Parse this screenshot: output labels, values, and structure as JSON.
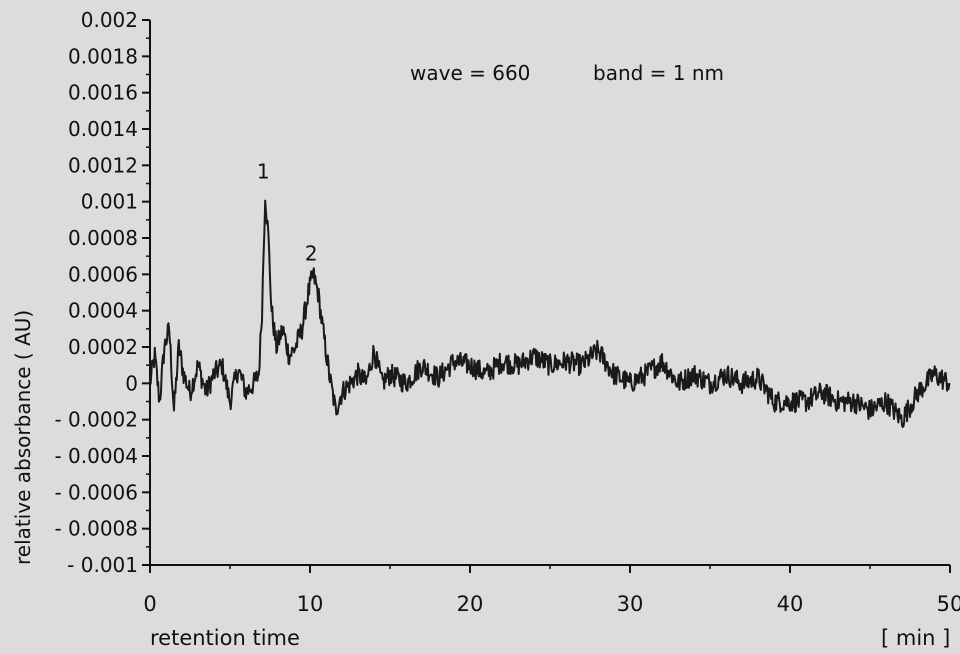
{
  "chart_data": {
    "type": "line",
    "xlabel": "retention time",
    "xunit": "[ min ]",
    "ylabel": "relative  absorbance  ( AU)",
    "xlim": [
      0,
      50
    ],
    "ylim": [
      -0.001,
      0.002
    ],
    "x_ticks": [
      0,
      10,
      20,
      30,
      40,
      50
    ],
    "y_ticks": [
      0.002,
      0.0018,
      0.0016,
      0.0014,
      0.0012,
      0.001,
      0.0008,
      0.0006,
      0.0004,
      0.0002,
      0,
      -0.0002,
      -0.0004,
      -0.0006,
      -0.0008,
      -0.001
    ],
    "y_tick_labels": [
      "0.002",
      "0.0018",
      "0.0016",
      "0.0014",
      "0.0012",
      "0.001",
      "0.0008",
      "0.0006",
      "0.0004",
      "0.0002",
      "0",
      "- 0.0002",
      "- 0.0004",
      "- 0.0006",
      "- 0.0008",
      "- 0.001"
    ],
    "annotations": [
      "wave = 660",
      "band = 1 nm"
    ],
    "peaks": [
      {
        "label": "1",
        "x": 7.2,
        "y": 0.00105
      },
      {
        "label": "2",
        "x": 10.2,
        "y": 0.0006
      }
    ],
    "grid": false,
    "series": [
      {
        "points": [
          [
            0,
            0.0
          ],
          [
            0.3,
            0.00015
          ],
          [
            0.6,
            -0.0001
          ],
          [
            0.9,
            0.0002
          ],
          [
            1.2,
            0.0003
          ],
          [
            1.5,
            -0.00015
          ],
          [
            1.8,
            0.0002
          ],
          [
            2.1,
            5e-05
          ],
          [
            2.5,
            -5e-05
          ],
          [
            3,
            0.0001
          ],
          [
            3.5,
            -5e-05
          ],
          [
            4,
            5e-05
          ],
          [
            4.5,
            0.0001
          ],
          [
            5,
            -0.0001
          ],
          [
            5.5,
            8e-05
          ],
          [
            6,
            -5e-05
          ],
          [
            6.5,
            0.0
          ],
          [
            6.8,
            5e-05
          ],
          [
            7.0,
            0.0004
          ],
          [
            7.2,
            0.00105
          ],
          [
            7.4,
            0.0008
          ],
          [
            7.6,
            0.0004
          ],
          [
            7.9,
            0.0002
          ],
          [
            8.3,
            0.0003
          ],
          [
            8.7,
            0.00015
          ],
          [
            9.1,
            0.0002
          ],
          [
            9.5,
            0.0003
          ],
          [
            9.9,
            0.0005
          ],
          [
            10.2,
            0.0006
          ],
          [
            10.5,
            0.0005
          ],
          [
            10.8,
            0.0003
          ],
          [
            11.2,
            5e-05
          ],
          [
            11.6,
            -0.00015
          ],
          [
            12,
            -5e-05
          ],
          [
            12.5,
            0.0
          ],
          [
            13,
            5e-05
          ],
          [
            13.5,
            0.0
          ],
          [
            14,
            0.00018
          ],
          [
            14.5,
            0.0
          ],
          [
            15,
            5e-05
          ],
          [
            16,
            0.0
          ],
          [
            17,
            0.0001
          ],
          [
            18,
            3e-05
          ],
          [
            19,
            0.00012
          ],
          [
            20,
            0.0001
          ],
          [
            21,
            5e-05
          ],
          [
            22,
            0.00012
          ],
          [
            23,
            0.0001
          ],
          [
            24,
            0.00015
          ],
          [
            25,
            0.0001
          ],
          [
            26,
            0.00012
          ],
          [
            27,
            0.0001
          ],
          [
            28,
            0.00018
          ],
          [
            29,
            5e-05
          ],
          [
            30,
            0.0
          ],
          [
            31,
            5e-05
          ],
          [
            32,
            0.00012
          ],
          [
            33,
            0.0
          ],
          [
            34,
            5e-05
          ],
          [
            35,
            0.0
          ],
          [
            36,
            5e-05
          ],
          [
            37,
            0.0
          ],
          [
            38,
            3e-05
          ],
          [
            39,
            -0.0001
          ],
          [
            40,
            -0.0001
          ],
          [
            41,
            -0.0001
          ],
          [
            42,
            -5e-05
          ],
          [
            43,
            -0.0001
          ],
          [
            44,
            -0.0001
          ],
          [
            45,
            -0.00015
          ],
          [
            46,
            -0.0001
          ],
          [
            47,
            -0.0002
          ],
          [
            48,
            -5e-05
          ],
          [
            49,
            5e-05
          ],
          [
            50,
            0.0
          ]
        ]
      }
    ]
  }
}
